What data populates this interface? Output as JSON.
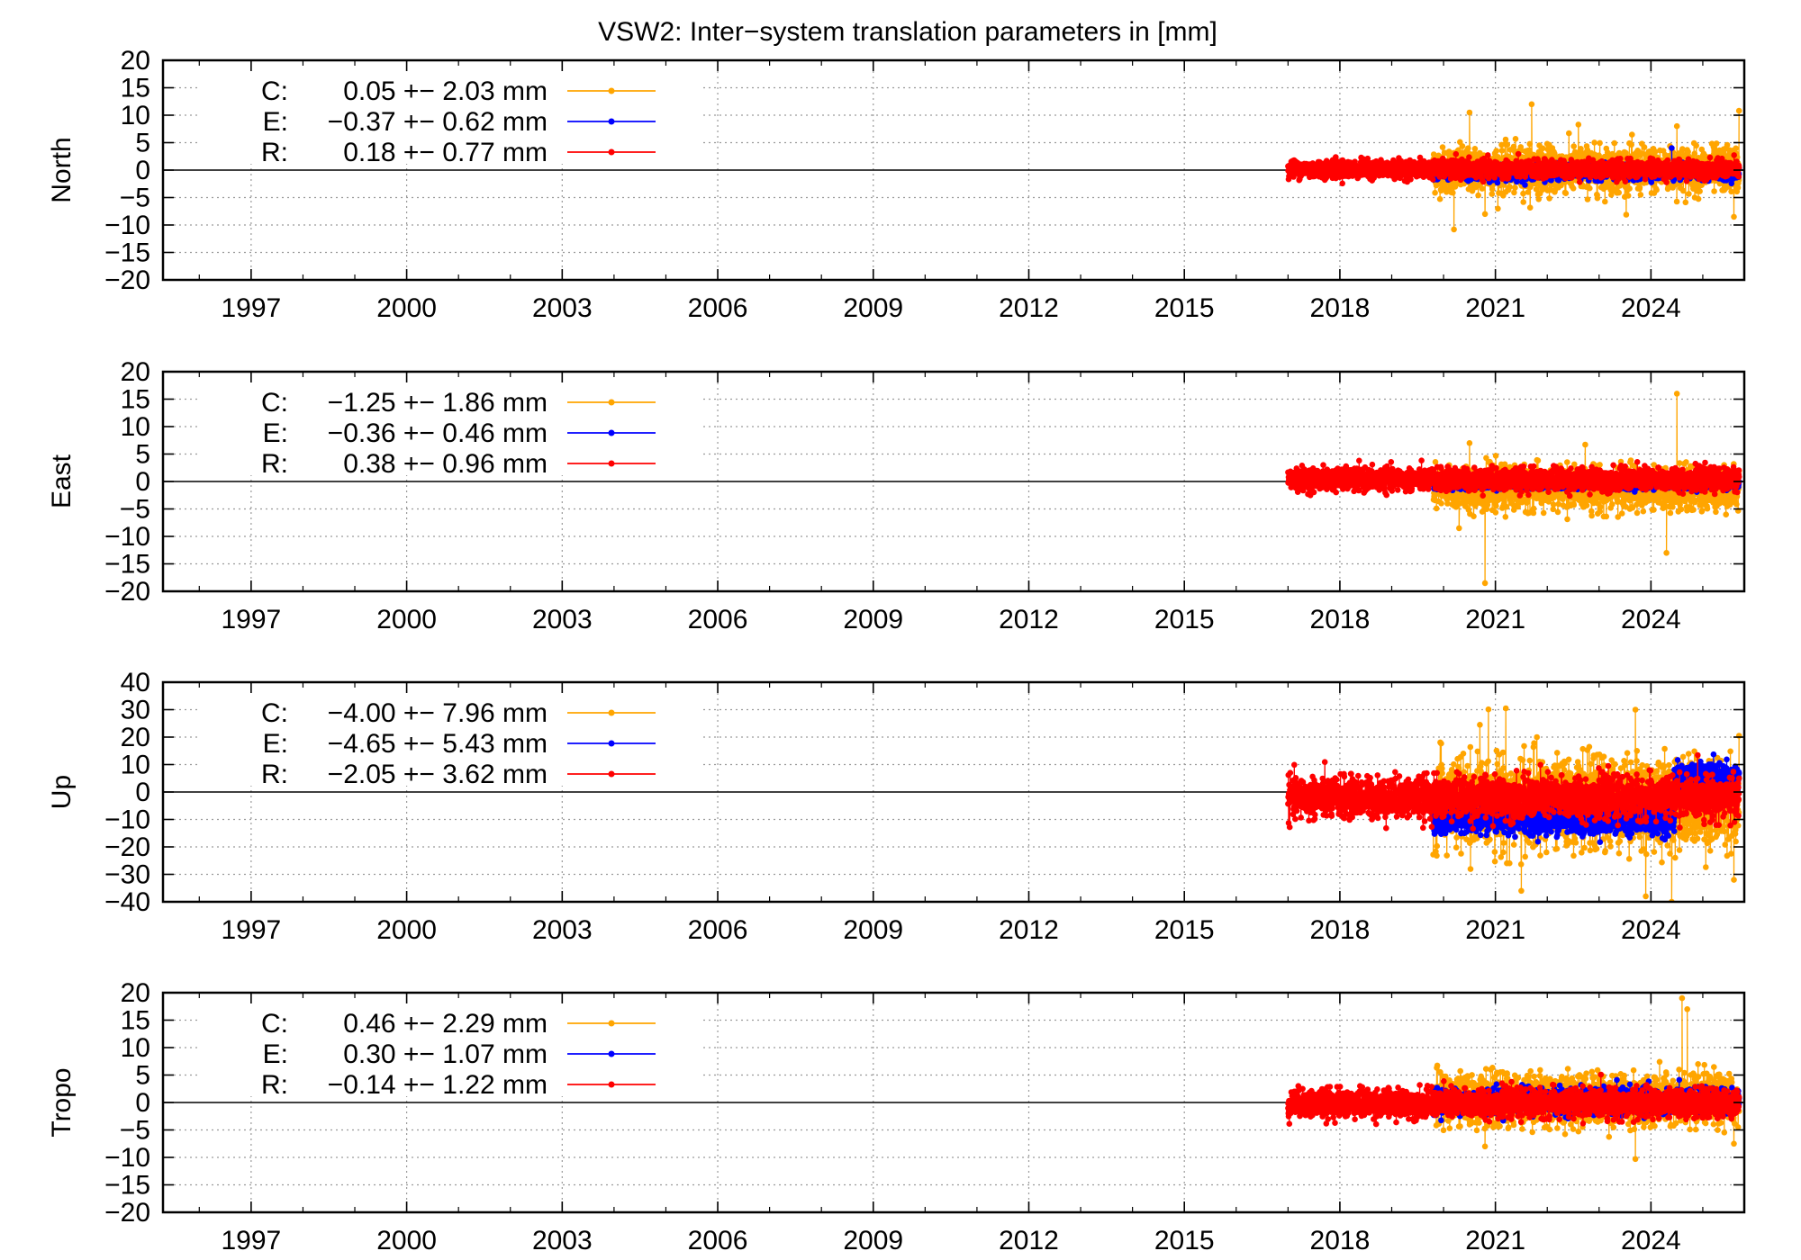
{
  "chart_data": {
    "type": "scatter",
    "title": "VSW2: Inter−system translation parameters in [mm]",
    "x_range": [
      1995.3,
      2025.8
    ],
    "x_ticks": [
      1997,
      2000,
      2003,
      2006,
      2009,
      2012,
      2015,
      2018,
      2021,
      2024
    ],
    "grid": true,
    "legend_placement": "top-left",
    "series_colors": {
      "C": "#ffa500",
      "E": "#0000ff",
      "R": "#ff0000"
    },
    "panels": [
      {
        "ylabel": "North",
        "ylim": [
          -20,
          20
        ],
        "y_ticks": [
          20,
          15,
          10,
          5,
          0,
          -5,
          -10,
          -15,
          -20
        ],
        "y_tick_labels": [
          "20",
          "15",
          "10",
          "5",
          "0",
          "−5",
          "−10",
          "−15",
          "−20"
        ],
        "legend": [
          {
            "key": "C",
            "label": "C:",
            "text": "0.05 +− 2.03 mm"
          },
          {
            "key": "E",
            "label": "E:",
            "text": "−0.37 +− 0.62 mm"
          },
          {
            "key": "R",
            "label": "R:",
            "text": "0.18 +− 0.77 mm"
          }
        ],
        "series": [
          {
            "name": "C",
            "x_start": 2019.8,
            "x_end": 2025.7,
            "mean": 0.05,
            "std": 2.03,
            "spikes": [
              [
                2020.5,
                10.5
              ],
              [
                2020.8,
                12.8
              ],
              [
                2021.7,
                12.0
              ],
              [
                2022.6,
                8.3
              ],
              [
                2024.5,
                8.0
              ],
              [
                2025.7,
                10.8
              ],
              [
                2020.2,
                -10.8
              ],
              [
                2020.8,
                -8.0
              ],
              [
                2025.6,
                -8.5
              ]
            ]
          },
          {
            "name": "E",
            "x_start": 2019.8,
            "x_end": 2025.7,
            "mean": -0.37,
            "std": 0.62,
            "spikes": [
              [
                2024.4,
                4.0
              ]
            ]
          },
          {
            "name": "R",
            "x_start": 2017.0,
            "x_end": 2025.7,
            "mean": 0.18,
            "std": 0.77,
            "spikes": []
          }
        ]
      },
      {
        "ylabel": "East",
        "ylim": [
          -20,
          20
        ],
        "y_ticks": [
          20,
          15,
          10,
          5,
          0,
          -5,
          -10,
          -15,
          -20
        ],
        "y_tick_labels": [
          "20",
          "15",
          "10",
          "5",
          "0",
          "−5",
          "−10",
          "−15",
          "−20"
        ],
        "legend": [
          {
            "key": "C",
            "label": "C:",
            "text": "−1.25 +− 1.86 mm"
          },
          {
            "key": "E",
            "label": "E:",
            "text": "−0.36 +− 0.46 mm"
          },
          {
            "key": "R",
            "label": "R:",
            "text": "0.38 +− 0.96 mm"
          }
        ],
        "series": [
          {
            "name": "C",
            "x_start": 2019.8,
            "x_end": 2025.7,
            "mean": -1.25,
            "std": 1.86,
            "spikes": [
              [
                2020.8,
                12.0
              ],
              [
                2020.5,
                7.0
              ],
              [
                2024.5,
                16.0
              ],
              [
                2020.8,
                -18.5
              ],
              [
                2020.3,
                -8.5
              ],
              [
                2024.3,
                -13.0
              ]
            ]
          },
          {
            "name": "E",
            "x_start": 2019.8,
            "x_end": 2025.7,
            "mean": -0.36,
            "std": 0.46,
            "spikes": []
          },
          {
            "name": "R",
            "x_start": 2017.0,
            "x_end": 2025.7,
            "mean": 0.38,
            "std": 0.96,
            "spikes": []
          }
        ]
      },
      {
        "ylabel": "Up",
        "ylim": [
          -40,
          40
        ],
        "y_ticks": [
          40,
          30,
          20,
          10,
          0,
          -10,
          -20,
          -30,
          -40
        ],
        "y_tick_labels": [
          "40",
          "30",
          "20",
          "10",
          "0",
          "−10",
          "−20",
          "−30",
          "−40"
        ],
        "legend": [
          {
            "key": "C",
            "label": "C:",
            "text": "−4.00 +− 7.96 mm"
          },
          {
            "key": "E",
            "label": "E:",
            "text": "−4.65 +− 5.43 mm"
          },
          {
            "key": "R",
            "label": "R:",
            "text": "−2.05 +− 3.62 mm"
          }
        ],
        "series": [
          {
            "name": "C",
            "x_start": 2019.8,
            "x_end": 2025.7,
            "mean": -4.0,
            "std": 7.96,
            "spikes": [
              [
                2021.2,
                30.5
              ],
              [
                2023.7,
                30.0
              ],
              [
                2020.7,
                24.5
              ],
              [
                2021.8,
                20.0
              ],
              [
                2025.7,
                20.5
              ],
              [
                2021.5,
                -36.0
              ],
              [
                2023.9,
                -38.0
              ],
              [
                2024.4,
                -40.0
              ],
              [
                2025.6,
                -32.0
              ]
            ]
          },
          {
            "name": "E",
            "x_start": 2019.8,
            "x_end": 2025.7,
            "mean": -4.65,
            "std": 5.43,
            "segments": [
              [
                2019.8,
                2024.45,
                -10.0
              ],
              [
                2024.45,
                2025.7,
                5.0
              ]
            ]
          },
          {
            "name": "R",
            "x_start": 2017.0,
            "x_end": 2025.7,
            "mean": -2.05,
            "std": 3.62,
            "spikes": []
          }
        ]
      },
      {
        "ylabel": "Tropo",
        "ylim": [
          -20,
          20
        ],
        "y_ticks": [
          20,
          15,
          10,
          5,
          0,
          -5,
          -10,
          -15,
          -20
        ],
        "y_tick_labels": [
          "20",
          "15",
          "10",
          "5",
          "0",
          "−5",
          "−10",
          "−15",
          "−20"
        ],
        "legend": [
          {
            "key": "C",
            "label": "C:",
            "text": "0.46 +− 2.29 mm"
          },
          {
            "key": "E",
            "label": "E:",
            "text": "0.30 +− 1.07 mm"
          },
          {
            "key": "R",
            "label": "R:",
            "text": "−0.14 +− 1.22 mm"
          }
        ],
        "series": [
          {
            "name": "C",
            "x_start": 2019.8,
            "x_end": 2025.7,
            "mean": 0.46,
            "std": 2.29,
            "spikes": [
              [
                2024.6,
                19.0
              ],
              [
                2024.7,
                17.0
              ],
              [
                2023.7,
                -10.3
              ],
              [
                2020.8,
                -8.0
              ],
              [
                2025.6,
                -7.5
              ]
            ]
          },
          {
            "name": "E",
            "x_start": 2019.8,
            "x_end": 2025.7,
            "mean": 0.3,
            "std": 1.07,
            "spikes": []
          },
          {
            "name": "R",
            "x_start": 2017.0,
            "x_end": 2025.7,
            "mean": -0.14,
            "std": 1.22,
            "spikes": []
          }
        ]
      }
    ]
  }
}
